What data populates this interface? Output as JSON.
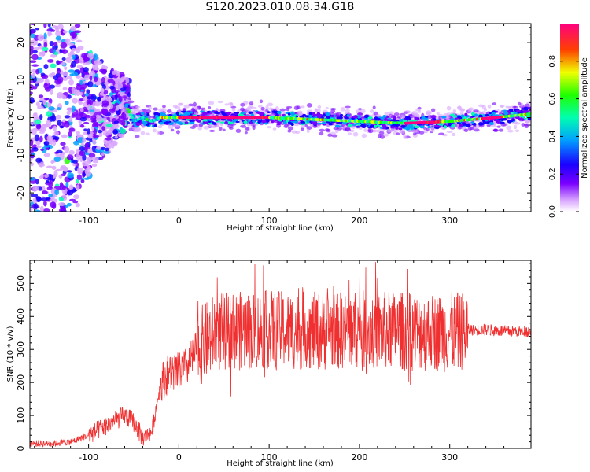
{
  "title": "S120.2023.010.08.34.G18",
  "chart_data": [
    {
      "type": "heatmap",
      "xlabel": "Height of straight line (km)",
      "ylabel": "Frequency (Hz)",
      "xlim": [
        -165,
        390
      ],
      "ylim": [
        -25,
        25
      ],
      "xticks": [
        -100,
        0,
        100,
        200,
        300
      ],
      "yticks": [
        -20,
        -10,
        0,
        10,
        20
      ],
      "colorbar": {
        "label": "Normalized spectral amplitude",
        "range": [
          0,
          1
        ],
        "ticks": [
          "0.0",
          "0.2",
          "0.4",
          "0.6",
          "0.8"
        ],
        "colormap": [
          "#ffffff",
          "#d9a6ff",
          "#7a00ff",
          "#1a00ff",
          "#00a0ff",
          "#00ffb0",
          "#20ff00",
          "#f0ff00",
          "#ff4000",
          "#ff0080"
        ]
      },
      "ridge": {
        "x": [
          -60,
          -50,
          -40,
          -30,
          -20,
          0,
          50,
          100,
          150,
          200,
          250,
          300,
          350,
          390
        ],
        "frequency": [
          4,
          -1,
          0,
          -1,
          0,
          0,
          0,
          0,
          -0.5,
          -1,
          -1.5,
          -1,
          0,
          1
        ]
      }
    },
    {
      "type": "line",
      "xlabel": "Height of straight line (km)",
      "ylabel": "SNR (10 * v/v)",
      "xlim": [
        -165,
        390
      ],
      "ylim": [
        0,
        570
      ],
      "xticks": [
        -100,
        0,
        100,
        200,
        300
      ],
      "yticks": [
        0,
        100,
        200,
        300,
        400,
        500
      ],
      "color": "#f03030",
      "series": [
        {
          "x": [
            -165,
            -140,
            -120,
            -100,
            -80,
            -60,
            -50,
            -40,
            -30,
            -20,
            -10,
            0,
            10,
            20,
            40,
            60,
            100,
            150,
            200,
            250,
            300,
            320,
            340,
            360,
            390
          ],
          "values": [
            15,
            15,
            20,
            40,
            70,
            100,
            80,
            30,
            50,
            200,
            230,
            230,
            250,
            300,
            350,
            355,
            360,
            355,
            360,
            355,
            350,
            360,
            360,
            355,
            355
          ]
        }
      ]
    }
  ]
}
